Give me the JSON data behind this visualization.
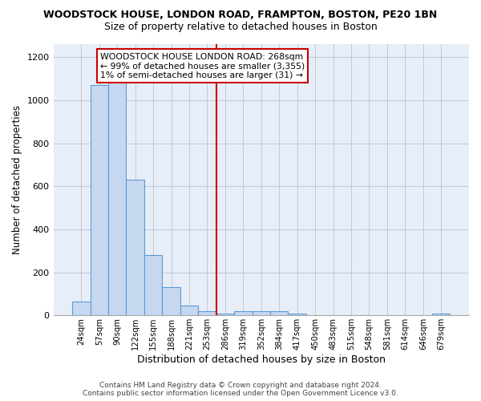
{
  "title": "WOODSTOCK HOUSE, LONDON ROAD, FRAMPTON, BOSTON, PE20 1BN",
  "subtitle": "Size of property relative to detached houses in Boston",
  "xlabel": "Distribution of detached houses by size in Boston",
  "ylabel": "Number of detached properties",
  "categories": [
    "24sqm",
    "57sqm",
    "90sqm",
    "122sqm",
    "155sqm",
    "188sqm",
    "221sqm",
    "253sqm",
    "286sqm",
    "319sqm",
    "352sqm",
    "384sqm",
    "417sqm",
    "450sqm",
    "483sqm",
    "515sqm",
    "548sqm",
    "581sqm",
    "614sqm",
    "646sqm",
    "679sqm"
  ],
  "values": [
    65,
    1070,
    1155,
    630,
    280,
    130,
    45,
    20,
    10,
    20,
    20,
    20,
    10,
    0,
    0,
    0,
    0,
    0,
    0,
    0,
    10
  ],
  "bar_color": "#c5d8f0",
  "bar_edge_color": "#5b9bd5",
  "vline_index": 7.5,
  "vline_color": "#cc0000",
  "annotation_lines": [
    "WOODSTOCK HOUSE LONDON ROAD: 268sqm",
    "← 99% of detached houses are smaller (3,355)",
    "1% of semi-detached houses are larger (31) →"
  ],
  "annotation_box_color": "#cc0000",
  "ylim": [
    0,
    1260
  ],
  "yticks": [
    0,
    200,
    400,
    600,
    800,
    1000,
    1200
  ],
  "footer": "Contains HM Land Registry data © Crown copyright and database right 2024.\nContains public sector information licensed under the Open Government Licence v3.0.",
  "plot_bg_color": "#e8eef8",
  "grid_color": "#c0c8d8",
  "title_fontsize": 9,
  "subtitle_fontsize": 9
}
